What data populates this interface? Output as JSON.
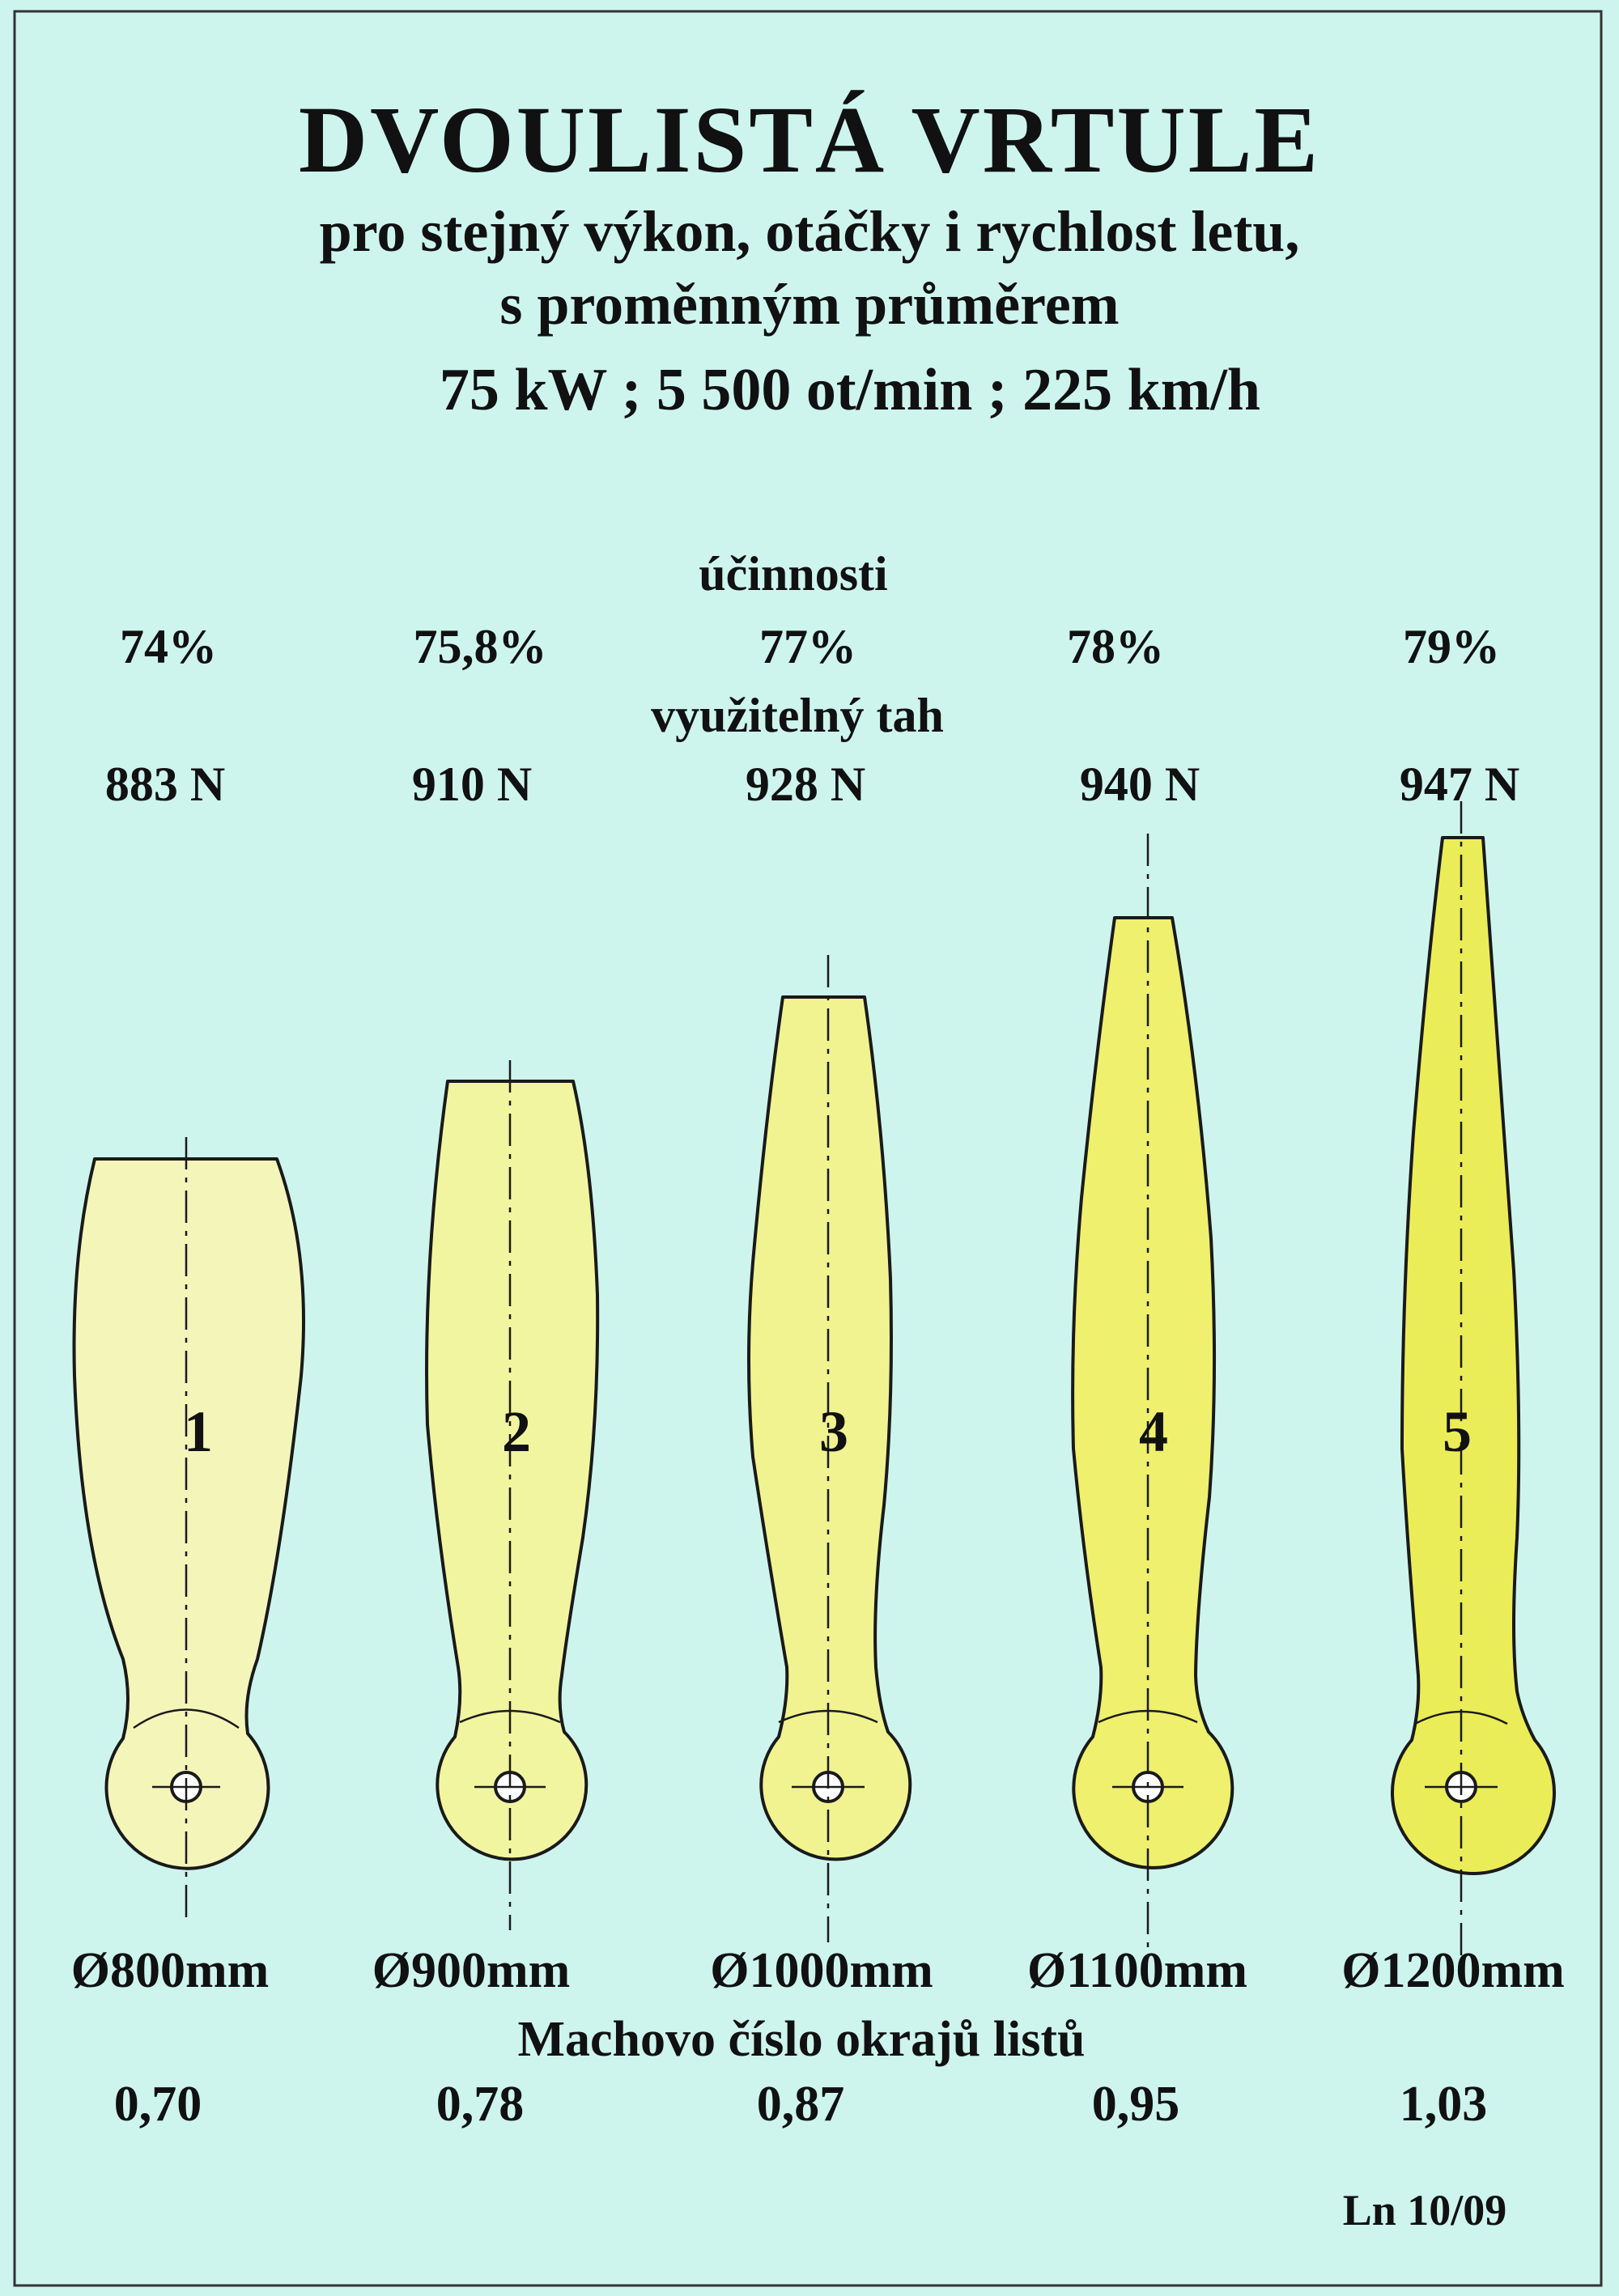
{
  "header": {
    "title": "DVOULISTÁ  VRTULE",
    "subtitle_line1": "pro stejný výkon, otáčky i rychlost letu,",
    "subtitle_line2": "s proměnným průměrem",
    "specs": "75 kW ; 5 500 ot/min ; 225 km/h"
  },
  "labels": {
    "efficiency": "účinnosti",
    "thrust": "využitelný tah",
    "mach": "Machovo číslo okrajů listů"
  },
  "blades": [
    {
      "number": "1",
      "efficiency": "74%",
      "thrust": "883 N",
      "diameter": "Ø800mm",
      "mach": "0,70",
      "fill": "#f4f5b9"
    },
    {
      "number": "2",
      "efficiency": "75,8%",
      "thrust": "910 N",
      "diameter": "Ø900mm",
      "mach": "0,78",
      "fill": "#f2f5a0"
    },
    {
      "number": "3",
      "efficiency": "77%",
      "thrust": "928 N",
      "diameter": "Ø1000mm",
      "mach": "0,87",
      "fill": "#f0f390"
    },
    {
      "number": "4",
      "efficiency": "78%",
      "thrust": "940 N",
      "diameter": "Ø1100mm",
      "mach": "0,95",
      "fill": "#eef06e"
    },
    {
      "number": "5",
      "efficiency": "79%",
      "thrust": "947 N",
      "diameter": "Ø1200mm",
      "mach": "1,03",
      "fill": "#ebed58"
    }
  ],
  "credit": "Ln 10/09",
  "colors": {
    "background": "#cdf5ed",
    "outline": "#1a1a1a"
  }
}
